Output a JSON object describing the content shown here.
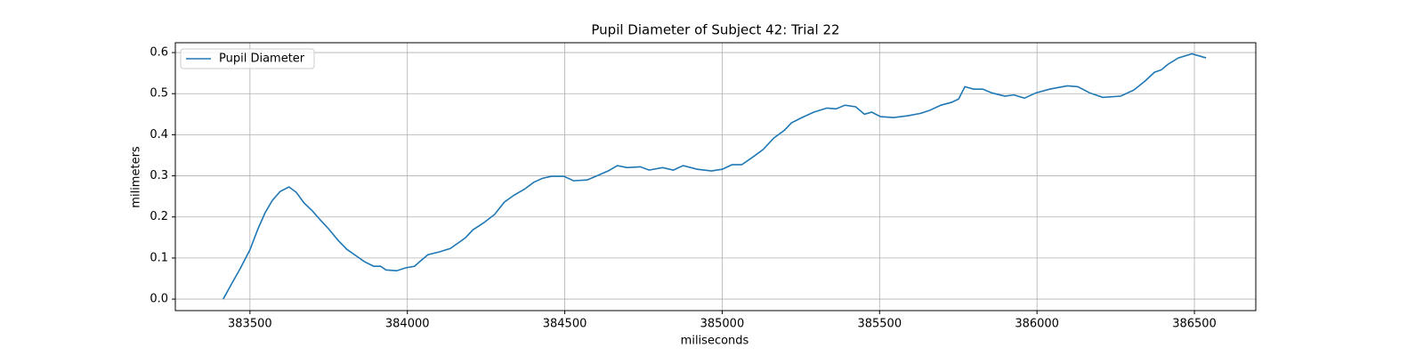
{
  "chart_data": {
    "type": "line",
    "title": "Pupil Diameter of Subject 42: Trial 22",
    "x_label": "miliseconds",
    "y_label": "milimeters",
    "x": [
      383415,
      383446,
      383469,
      383500,
      383525,
      383548,
      383571,
      383596,
      383624,
      383647,
      383672,
      383698,
      383723,
      383751,
      383780,
      383808,
      383836,
      383864,
      383893,
      383915,
      383932,
      383966,
      383994,
      384023,
      384042,
      384065,
      384102,
      384136,
      384164,
      384184,
      384209,
      384243,
      384277,
      384308,
      384339,
      384373,
      384401,
      384429,
      384458,
      384497,
      384528,
      384571,
      384605,
      384638,
      384667,
      384698,
      384740,
      384768,
      384811,
      384845,
      384876,
      384921,
      384966,
      385000,
      385031,
      385062,
      385096,
      385130,
      385164,
      385198,
      385220,
      385254,
      385291,
      385333,
      385362,
      385390,
      385424,
      385452,
      385475,
      385503,
      385545,
      385588,
      385630,
      385658,
      385695,
      385729,
      385751,
      385771,
      385799,
      385828,
      385856,
      385898,
      385927,
      385960,
      385997,
      386040,
      386096,
      386130,
      386167,
      386209,
      386266,
      386308,
      386345,
      386373,
      386395,
      386415,
      386449,
      386492,
      386537
    ],
    "series": [
      {
        "name": "Pupil Diameter",
        "color": "#1f77b4",
        "values": [
          0.0,
          0.043,
          0.074,
          0.12,
          0.17,
          0.21,
          0.24,
          0.262,
          0.273,
          0.26,
          0.234,
          0.215,
          0.193,
          0.17,
          0.143,
          0.121,
          0.106,
          0.091,
          0.08,
          0.08,
          0.071,
          0.069,
          0.076,
          0.08,
          0.093,
          0.108,
          0.115,
          0.123,
          0.138,
          0.149,
          0.169,
          0.186,
          0.206,
          0.236,
          0.253,
          0.268,
          0.284,
          0.294,
          0.299,
          0.299,
          0.288,
          0.29,
          0.301,
          0.312,
          0.325,
          0.32,
          0.322,
          0.314,
          0.32,
          0.314,
          0.325,
          0.316,
          0.312,
          0.316,
          0.327,
          0.327,
          0.345,
          0.364,
          0.392,
          0.411,
          0.429,
          0.442,
          0.455,
          0.465,
          0.463,
          0.472,
          0.468,
          0.45,
          0.455,
          0.444,
          0.442,
          0.446,
          0.452,
          0.459,
          0.472,
          0.479,
          0.487,
          0.517,
          0.511,
          0.511,
          0.502,
          0.494,
          0.497,
          0.489,
          0.502,
          0.511,
          0.519,
          0.517,
          0.502,
          0.491,
          0.494,
          0.509,
          0.532,
          0.552,
          0.558,
          0.571,
          0.587,
          0.597,
          0.587
        ]
      }
    ],
    "xlim": [
      383263,
      386695
    ],
    "ylim": [
      -0.028,
      0.624
    ],
    "xticks": [
      383500,
      384000,
      384500,
      385000,
      385500,
      386000,
      386500
    ],
    "yticks": [
      {
        "value": 0,
        "label": "0.0"
      },
      0.1,
      0.2,
      0.3,
      0.4,
      0.5,
      0.6
    ],
    "grid": true,
    "legend": "upper-left"
  }
}
